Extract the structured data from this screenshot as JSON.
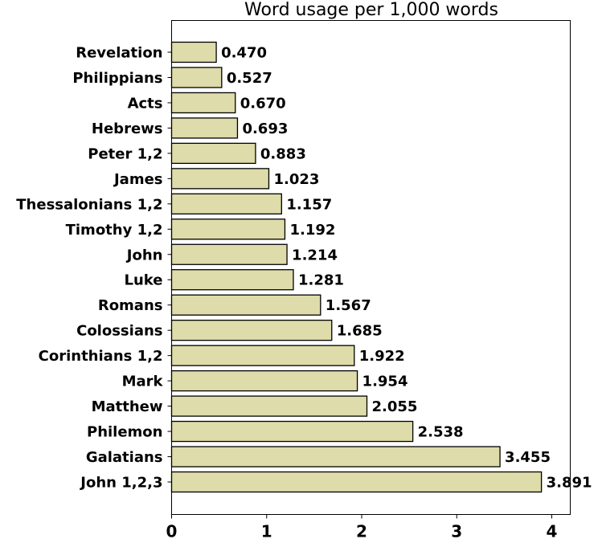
{
  "chart_data": {
    "type": "bar",
    "orientation": "horizontal",
    "title": "Word usage per 1,000 words",
    "xlabel": "",
    "ylabel": "",
    "xlim": [
      0,
      4.2
    ],
    "xticks": [
      "0",
      "1",
      "2",
      "3",
      "4"
    ],
    "grid": false,
    "bar_color": "#dddcaa",
    "categories": [
      "Revelation",
      "Philippians",
      "Acts",
      "Hebrews",
      "Peter 1,2",
      "James",
      "Thessalonians 1,2",
      "Timothy 1,2",
      "John",
      "Luke",
      "Romans",
      "Colossians",
      "Corinthians 1,2",
      "Mark",
      "Matthew",
      "Philemon",
      "Galatians",
      "John 1,2,3"
    ],
    "values": [
      0.47,
      0.527,
      0.67,
      0.693,
      0.883,
      1.023,
      1.157,
      1.192,
      1.214,
      1.281,
      1.567,
      1.685,
      1.922,
      1.954,
      2.055,
      2.538,
      3.455,
      3.891
    ],
    "value_labels": [
      "0.470",
      "0.527",
      "0.670",
      "0.693",
      "0.883",
      "1.023",
      "1.157",
      "1.192",
      "1.214",
      "1.281",
      "1.567",
      "1.685",
      "1.922",
      "1.954",
      "2.055",
      "2.538",
      "3.455",
      "3.891"
    ]
  }
}
